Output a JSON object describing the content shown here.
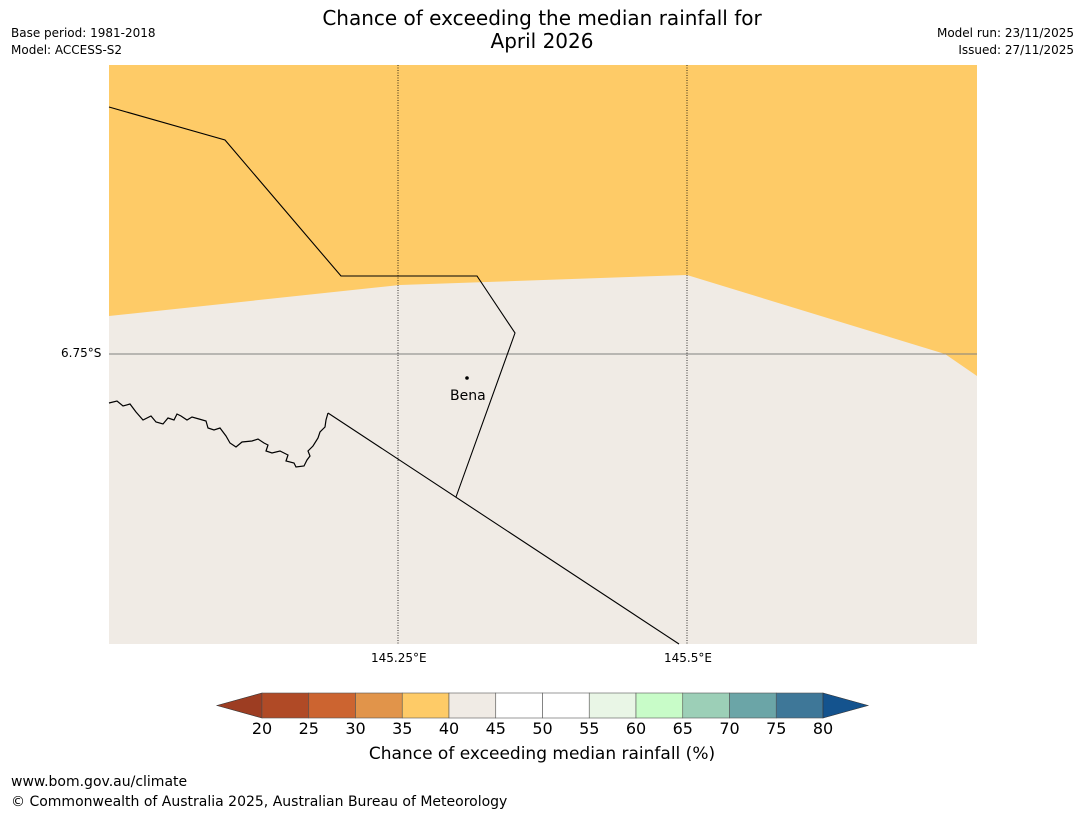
{
  "header": {
    "title_line1": "Chance of exceeding the median rainfall for",
    "title_line2": "April 2026",
    "base_period": "Base period: 1981-2018",
    "model": "Model: ACCESS-S2",
    "model_run": "Model run: 23/11/2025",
    "issued": "Issued: 27/11/2025"
  },
  "map": {
    "lon_labels": [
      "145.25°E",
      "145.5°E"
    ],
    "lat_label": "6.75°S",
    "place": "Bena",
    "colors": {
      "band_35_40": "#fecb67",
      "band_40_45": "#f0ebe5",
      "border": "#000000",
      "grid": "#000000"
    }
  },
  "colorbar": {
    "title": "Chance of exceeding median rainfall (%)",
    "ticks": [
      "20",
      "25",
      "30",
      "35",
      "40",
      "45",
      "50",
      "55",
      "60",
      "65",
      "70",
      "75",
      "80"
    ],
    "under_color": "#9d3d22",
    "over_color": "#14538e",
    "colors": [
      "#b04a26",
      "#cc6430",
      "#e1944a",
      "#fecb67",
      "#f0ebe5",
      "#ffffff",
      "#ffffff",
      "#e9f6e6",
      "#c8fcc8",
      "#9ccfb7",
      "#6ba5a7",
      "#3e7798"
    ]
  },
  "footer": {
    "url": "www.bom.gov.au/climate",
    "copyright": "© Commonwealth of Australia 2025, Australian Bureau of Meteorology"
  }
}
